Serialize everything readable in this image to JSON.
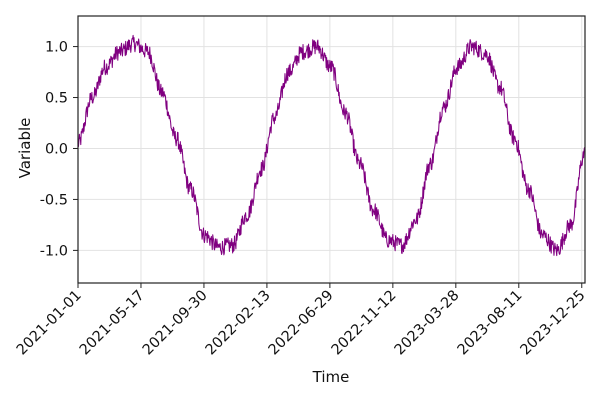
{
  "chart_data": {
    "type": "line",
    "xlabel": "Time",
    "ylabel": "Variable",
    "x_start": "2021-01-01",
    "x_end": "2023-12-31",
    "xlim": [
      "2021-01-01",
      "2024-01-01"
    ],
    "ylim": [
      -1.32,
      1.3
    ],
    "grid": true,
    "x_ticks": [
      "2021-01-01",
      "2021-05-17",
      "2021-09-30",
      "2022-02-13",
      "2022-06-29",
      "2022-11-12",
      "2023-03-28",
      "2023-08-11",
      "2023-12-25"
    ],
    "y_ticks": [
      -1.0,
      -0.5,
      0.0,
      0.5,
      1.0
    ],
    "y_tick_labels": [
      "-1.0",
      "-0.5",
      "0.0",
      "0.5",
      "1.0"
    ],
    "series": [
      {
        "color": "#800080",
        "x": [
          "2021-01-01",
          "2021-02-01",
          "2021-03-01",
          "2021-04-01",
          "2021-05-01",
          "2021-06-01",
          "2021-07-01",
          "2021-08-01",
          "2021-09-01",
          "2021-10-01",
          "2021-11-01",
          "2021-12-01",
          "2022-01-01",
          "2022-02-01",
          "2022-03-01",
          "2022-04-01",
          "2022-05-01",
          "2022-06-01",
          "2022-07-01",
          "2022-08-01",
          "2022-09-01",
          "2022-10-01",
          "2022-11-01",
          "2022-12-01",
          "2023-01-01",
          "2023-02-01",
          "2023-03-01",
          "2023-04-01",
          "2023-05-01",
          "2023-06-01",
          "2023-07-01",
          "2023-08-01",
          "2023-09-01",
          "2023-10-01",
          "2023-11-01",
          "2023-12-01",
          "2023-12-31"
        ],
        "values": [
          0.05,
          0.5,
          0.8,
          0.95,
          1.03,
          0.95,
          0.55,
          0.1,
          -0.4,
          -0.85,
          -0.97,
          -0.95,
          -0.65,
          -0.2,
          0.3,
          0.75,
          0.95,
          1.0,
          0.8,
          0.35,
          -0.15,
          -0.6,
          -0.9,
          -0.95,
          -0.7,
          -0.15,
          0.4,
          0.8,
          1.0,
          0.93,
          0.6,
          0.1,
          -0.4,
          -0.85,
          -1.0,
          -0.75,
          -0.05
        ]
      }
    ]
  }
}
